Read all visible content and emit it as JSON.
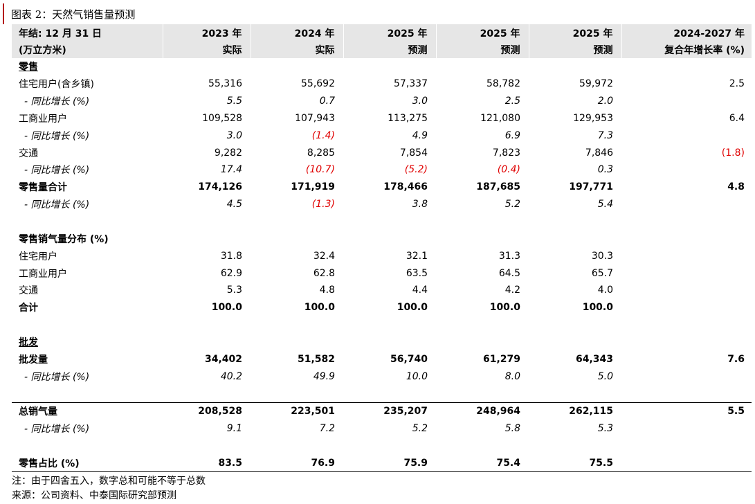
{
  "title": "图表 2：天然气销售量预测",
  "header": {
    "row1": [
      "年结: 12 月 31 日",
      "2023 年",
      "2024 年",
      "2025 年",
      "2025 年",
      "2025 年",
      "2024-2027 年"
    ],
    "row2": [
      "(万立方米)",
      "实际",
      "实际",
      "预测",
      "预测",
      "预测",
      "复合年增长率 (%)"
    ]
  },
  "rows": [
    {
      "style": "sec",
      "cells": [
        "零售",
        "",
        "",
        "",
        "",
        "",
        ""
      ]
    },
    {
      "style": "",
      "cells": [
        "住宅用户(含乡镇)",
        "55,316",
        "55,692",
        "57,337",
        "58,782",
        "59,972",
        "2.5"
      ]
    },
    {
      "style": "ital",
      "cells": [
        "- 同比增长 (%)",
        "5.5",
        "0.7",
        "3.0",
        "2.5",
        "2.0",
        ""
      ]
    },
    {
      "style": "",
      "cells": [
        "工商业用户",
        "109,528",
        "107,943",
        "113,275",
        "121,080",
        "129,953",
        "6.4"
      ]
    },
    {
      "style": "ital",
      "cells": [
        "- 同比增长 (%)",
        "3.0",
        "(1.4)",
        "4.9",
        "6.9",
        "7.3",
        ""
      ]
    },
    {
      "style": "",
      "cells": [
        "交通",
        "9,282",
        "8,285",
        "7,854",
        "7,823",
        "7,846",
        "(1.8)"
      ]
    },
    {
      "style": "ital",
      "cells": [
        "- 同比增长 (%)",
        "17.4",
        "(10.7)",
        "(5.2)",
        "(0.4)",
        "0.3",
        ""
      ]
    },
    {
      "style": "bold",
      "cells": [
        "零售量合计",
        "174,126",
        "171,919",
        "178,466",
        "187,685",
        "197,771",
        "4.8"
      ]
    },
    {
      "style": "ital",
      "cells": [
        "- 同比增长 (%)",
        "4.5",
        "(1.3)",
        "3.8",
        "5.2",
        "5.4",
        ""
      ]
    },
    {
      "style": "",
      "cells": [
        "",
        "",
        "",
        "",
        "",
        "",
        ""
      ]
    },
    {
      "style": "bold",
      "cells": [
        "零售销气量分布 (%)",
        "",
        "",
        "",
        "",
        "",
        ""
      ]
    },
    {
      "style": "",
      "cells": [
        "住宅用户",
        "31.8",
        "32.4",
        "32.1",
        "31.3",
        "30.3",
        ""
      ]
    },
    {
      "style": "",
      "cells": [
        "工商业用户",
        "62.9",
        "62.8",
        "63.5",
        "64.5",
        "65.7",
        ""
      ]
    },
    {
      "style": "",
      "cells": [
        "交通",
        "5.3",
        "4.8",
        "4.4",
        "4.2",
        "4.0",
        ""
      ]
    },
    {
      "style": "bold",
      "cells": [
        "合计",
        "100.0",
        "100.0",
        "100.0",
        "100.0",
        "100.0",
        ""
      ]
    },
    {
      "style": "",
      "cells": [
        "",
        "",
        "",
        "",
        "",
        "",
        ""
      ]
    },
    {
      "style": "sec",
      "cells": [
        "批发",
        "",
        "",
        "",
        "",
        "",
        ""
      ]
    },
    {
      "style": "bold",
      "cells": [
        "批发量",
        "34,402",
        "51,582",
        "56,740",
        "61,279",
        "64,343",
        "7.6"
      ]
    },
    {
      "style": "ital",
      "cells": [
        "- 同比增长 (%)",
        "40.2",
        "49.9",
        "10.0",
        "8.0",
        "5.0",
        ""
      ]
    },
    {
      "style": "",
      "cells": [
        "",
        "",
        "",
        "",
        "",
        "",
        ""
      ]
    },
    {
      "style": "bold toprule",
      "cells": [
        "总销气量",
        "208,528",
        "223,501",
        "235,207",
        "248,964",
        "262,115",
        "5.5"
      ]
    },
    {
      "style": "ital",
      "cells": [
        "- 同比增长 (%)",
        "9.1",
        "7.2",
        "5.2",
        "5.8",
        "5.3",
        ""
      ]
    },
    {
      "style": "",
      "cells": [
        "",
        "",
        "",
        "",
        "",
        "",
        ""
      ]
    },
    {
      "style": "bold bottomrule",
      "cells": [
        "零售占比 (%)",
        "83.5",
        "76.9",
        "75.9",
        "75.4",
        "75.5",
        ""
      ]
    }
  ],
  "notes": [
    "注：由于四舍五入，数字总和可能不等于总数",
    "来源：公司资料、中泰国际研究部预测"
  ]
}
